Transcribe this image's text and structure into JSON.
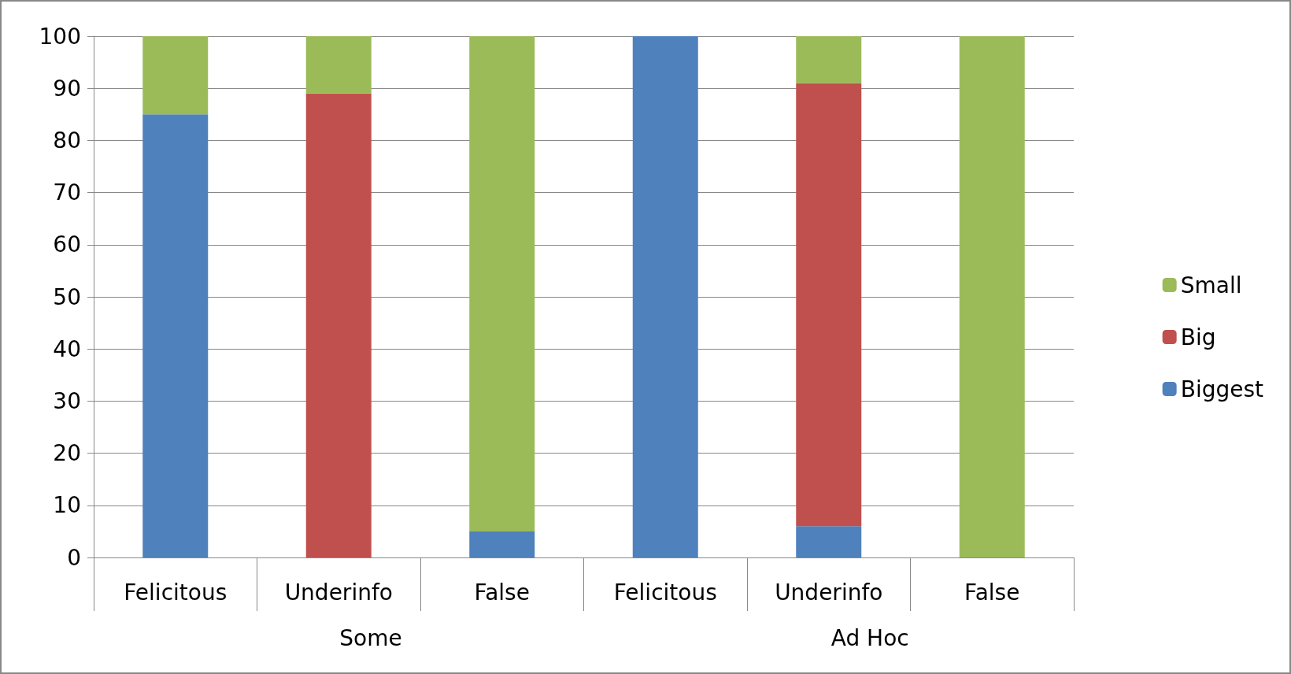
{
  "chart_data": {
    "type": "bar",
    "stacked": true,
    "categories": [
      "Felicitous",
      "Underinfo",
      "False",
      "Felicitous",
      "Underinfo",
      "False"
    ],
    "series": [
      {
        "name": "Biggest",
        "color": "#4f81bd",
        "values": [
          85,
          null,
          5,
          100,
          6,
          null
        ]
      },
      {
        "name": "Big",
        "color": "#c0504d",
        "values": [
          null,
          89,
          null,
          null,
          85,
          null
        ]
      },
      {
        "name": "Small",
        "color": "#9bbb59",
        "values": [
          15,
          11,
          95,
          null,
          9,
          100
        ]
      }
    ],
    "ylim": [
      0,
      100
    ],
    "yticks": [
      0,
      10,
      20,
      30,
      40,
      50,
      60,
      70,
      80,
      90,
      100
    ],
    "grid": "y",
    "legend": "right",
    "annotations": [
      "Some",
      "Ad Hoc"
    ]
  }
}
